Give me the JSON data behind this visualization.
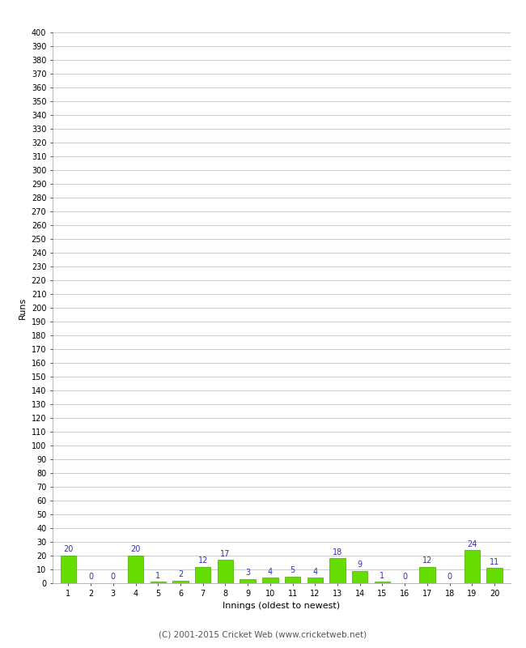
{
  "innings": [
    1,
    2,
    3,
    4,
    5,
    6,
    7,
    8,
    9,
    10,
    11,
    12,
    13,
    14,
    15,
    16,
    17,
    18,
    19,
    20
  ],
  "runs": [
    20,
    0,
    0,
    20,
    1,
    2,
    12,
    17,
    3,
    4,
    5,
    4,
    18,
    9,
    1,
    0,
    12,
    0,
    24,
    11
  ],
  "bar_color": "#66dd00",
  "bar_edge_color": "#44aa00",
  "label_color": "#3333aa",
  "xlabel": "Innings (oldest to newest)",
  "ylabel": "Runs",
  "ylim": [
    0,
    400
  ],
  "background_color": "#ffffff",
  "grid_color": "#cccccc",
  "footer": "(C) 2001-2015 Cricket Web (www.cricketweb.net)"
}
